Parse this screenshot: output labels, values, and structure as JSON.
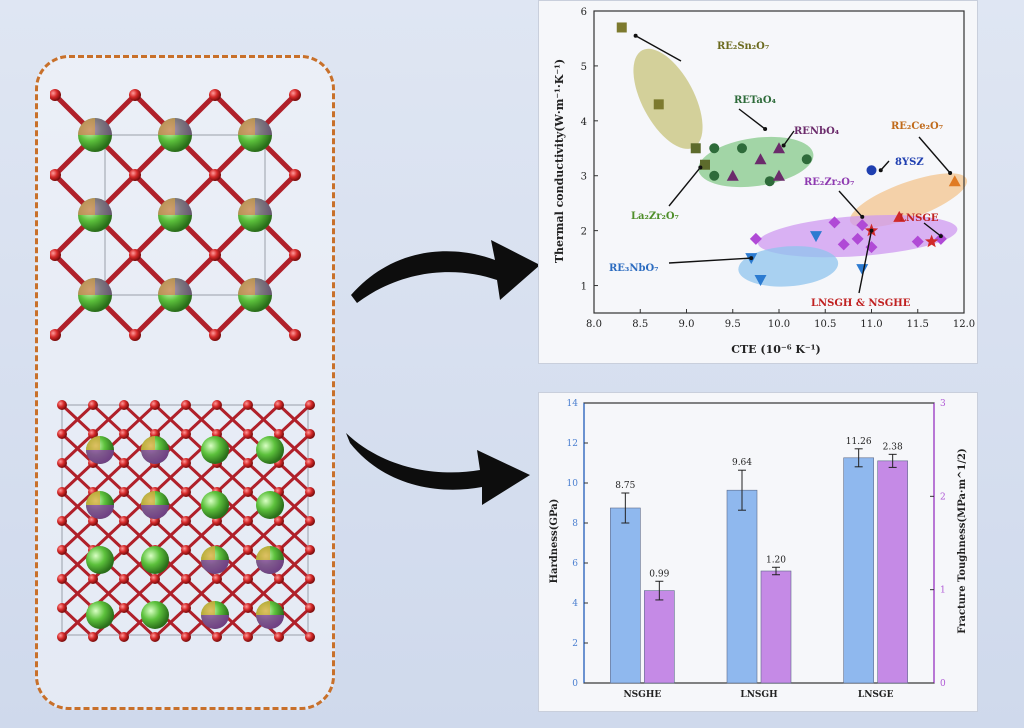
{
  "scatter_panel": {
    "chart_data": {
      "type": "scatter",
      "xlabel": "CTE (10⁻⁶ K⁻¹)",
      "ylabel": "Thermal conductivity(W·m⁻¹·K⁻¹)",
      "xlim": [
        8.0,
        12.0
      ],
      "ylim": [
        0.5,
        6.0
      ],
      "xticks": [
        "8.0",
        "8.5",
        "9.0",
        "9.5",
        "10.0",
        "10.5",
        "11.0",
        "11.5",
        "12.0"
      ],
      "yticks": [
        "1",
        "2",
        "3",
        "4",
        "5",
        "6"
      ],
      "series": [
        {
          "name": "RE₂Sn₂O₇",
          "color": "#7d7a2e",
          "marker": "square",
          "points": [
            [
              8.3,
              5.7
            ],
            [
              8.7,
              4.3
            ]
          ]
        },
        {
          "name": "La₂Zr₂O₇",
          "color": "#5d6b2c",
          "marker": "square",
          "points": [
            [
              9.1,
              3.5
            ],
            [
              9.2,
              3.2
            ]
          ]
        },
        {
          "name": "RETaO₄",
          "color": "#2e6b3a",
          "marker": "circle",
          "points": [
            [
              9.3,
              3.5
            ],
            [
              9.3,
              3.0
            ],
            [
              9.6,
              3.5
            ],
            [
              9.9,
              2.9
            ],
            [
              10.3,
              3.3
            ]
          ]
        },
        {
          "name": "RENbO₄",
          "color": "#6b2b6b",
          "marker": "triangle",
          "points": [
            [
              9.5,
              3.0
            ],
            [
              9.8,
              3.3
            ],
            [
              10.0,
              3.5
            ],
            [
              10.0,
              3.0
            ]
          ]
        },
        {
          "name": "RE₃NbO₇",
          "color": "#2c7bd1",
          "marker": "triangle-down",
          "points": [
            [
              9.7,
              1.5
            ],
            [
              9.8,
              1.1
            ],
            [
              10.4,
              1.9
            ],
            [
              10.9,
              1.3
            ]
          ]
        },
        {
          "name": "RE₂Zr₂O₇",
          "color": "#b04ad6",
          "marker": "diamond",
          "points": [
            [
              9.75,
              1.85
            ],
            [
              10.6,
              2.15
            ],
            [
              10.7,
              1.75
            ],
            [
              10.85,
              1.85
            ],
            [
              10.9,
              2.1
            ],
            [
              11.0,
              1.7
            ],
            [
              11.5,
              1.8
            ],
            [
              11.75,
              1.85
            ]
          ]
        },
        {
          "name": "8YSZ",
          "color": "#1f3fb0",
          "marker": "circle",
          "points": [
            [
              11.0,
              3.1
            ]
          ]
        },
        {
          "name": "RE₂Ce₂O₇",
          "color": "#e07b24",
          "marker": "triangle",
          "points": [
            [
              11.9,
              2.9
            ]
          ]
        },
        {
          "name": "LNSGE",
          "color": "#d02a2a",
          "marker": "triangle",
          "points": [
            [
              11.3,
              2.25
            ]
          ]
        },
        {
          "name": "LNSGH & NSGHE",
          "color": "#d02a2a",
          "marker": "star",
          "points": [
            [
              11.0,
              2.0
            ],
            [
              11.65,
              1.8
            ]
          ]
        }
      ],
      "annotations": [
        {
          "text": "RE₂Sn₂O₇",
          "color": "#6b6a1e"
        },
        {
          "text": "RETaO₄",
          "color": "#2e6b3a"
        },
        {
          "text": "RENbO₄",
          "color": "#6b2b6b"
        },
        {
          "text": "RE₂Ce₂O₇",
          "color": "#c06a1a"
        },
        {
          "text": "8YSZ",
          "color": "#1f3fb0"
        },
        {
          "text": "RE₂Zr₂O₇",
          "color": "#8e3ab0"
        },
        {
          "text": "LNSGE",
          "color": "#c02020"
        },
        {
          "text": "La₂Zr₂O₇",
          "color": "#4f8f2a"
        },
        {
          "text": "RE₃NbO₇",
          "color": "#2c6cc0"
        },
        {
          "text": "LNSGH & NSGHE",
          "color": "#c02020"
        }
      ]
    }
  },
  "bar_panel": {
    "chart_data": {
      "type": "bar",
      "categories": [
        "NSGHE",
        "LNSGH",
        "LNSGE"
      ],
      "ylabel_left": "Hardness(GPa)",
      "ylabel_right": "Fracture Toughness(MPa·m^1/2)",
      "ylim_left": [
        0,
        14
      ],
      "ylim_right": [
        0,
        3
      ],
      "yticks_left": [
        "0",
        "2",
        "4",
        "6",
        "8",
        "10",
        "12",
        "14"
      ],
      "yticks_right": [
        "0",
        "1",
        "2",
        "3"
      ],
      "series": [
        {
          "name": "Hardness",
          "axis": "left",
          "color": "#8fb8ee",
          "values": [
            8.75,
            9.64,
            11.26
          ],
          "errors": [
            0.75,
            1.0,
            0.45
          ],
          "labels": [
            "8.75",
            "9.64",
            "11.26"
          ]
        },
        {
          "name": "Fracture Toughness",
          "axis": "right",
          "color": "#c58ae6",
          "values": [
            0.99,
            1.2,
            2.38
          ],
          "errors": [
            0.1,
            0.04,
            0.07
          ],
          "labels": [
            "0.99",
            "1.20",
            "2.38"
          ]
        }
      ]
    }
  }
}
